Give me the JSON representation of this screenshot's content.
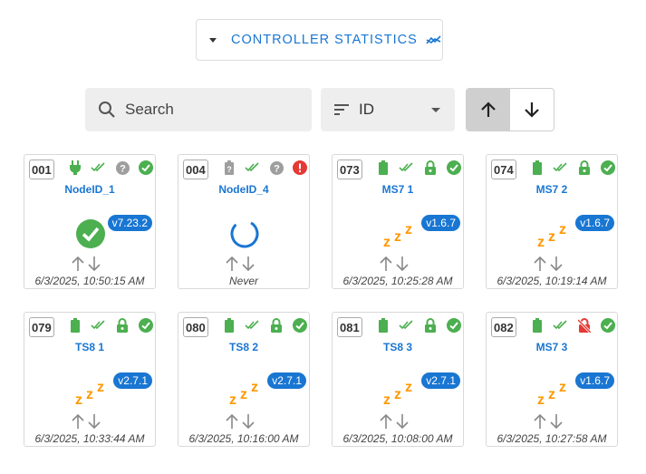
{
  "toolbar": {
    "stats_label": "CONTROLLER STATISTICS",
    "search_placeholder": "Search",
    "sort_value": "ID"
  },
  "colors": {
    "accent": "#1976d2",
    "ok": "#4caf50",
    "error": "#e53935",
    "sleep": "#ff9800",
    "muted": "#9e9e9e"
  },
  "nodes": [
    {
      "id": "001",
      "name": "NodeID_1",
      "version": "v7.23.2",
      "time": "6/3/2025, 10:50:15 AM",
      "power": "plug-icon",
      "security": "unknown-icon",
      "status": "ok",
      "state": "awake"
    },
    {
      "id": "004",
      "name": "NodeID_4",
      "version": "",
      "time": "Never",
      "power": "battery-unknown-icon",
      "security": "unknown-icon",
      "status": "error",
      "state": "loading"
    },
    {
      "id": "073",
      "name": "MS7 1",
      "version": "v1.6.7",
      "time": "6/3/2025, 10:25:28 AM",
      "power": "battery-icon",
      "security": "lock-icon",
      "status": "ok",
      "state": "asleep"
    },
    {
      "id": "074",
      "name": "MS7 2",
      "version": "v1.6.7",
      "time": "6/3/2025, 10:19:14 AM",
      "power": "battery-icon",
      "security": "lock-icon",
      "status": "ok",
      "state": "asleep"
    },
    {
      "id": "079",
      "name": "TS8 1",
      "version": "v2.7.1",
      "time": "6/3/2025, 10:33:44 AM",
      "power": "battery-icon",
      "security": "lock-icon",
      "status": "ok",
      "state": "asleep"
    },
    {
      "id": "080",
      "name": "TS8 2",
      "version": "v2.7.1",
      "time": "6/3/2025, 10:16:00 AM",
      "power": "battery-icon",
      "security": "lock-icon",
      "status": "ok",
      "state": "asleep"
    },
    {
      "id": "081",
      "name": "TS8 3",
      "version": "v2.7.1",
      "time": "6/3/2025, 10:08:00 AM",
      "power": "battery-icon",
      "security": "lock-icon",
      "status": "ok",
      "state": "asleep"
    },
    {
      "id": "082",
      "name": "MS7 3",
      "version": "v1.6.7",
      "time": "6/3/2025, 10:27:58 AM",
      "power": "battery-icon",
      "security": "lock-off-icon",
      "status": "ok",
      "state": "asleep"
    }
  ]
}
